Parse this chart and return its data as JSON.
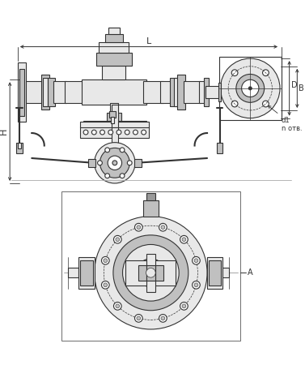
{
  "bg_color": "#ffffff",
  "line_color": "#333333",
  "fill_light": "#e8e8e8",
  "fill_mid": "#c0c0c0",
  "fill_dark": "#999999",
  "dim_color": "#333333",
  "dim_L": "L",
  "dim_H": "H",
  "dim_D": "D",
  "dim_B": "B",
  "annotation_d1n": "d1\nn отв."
}
